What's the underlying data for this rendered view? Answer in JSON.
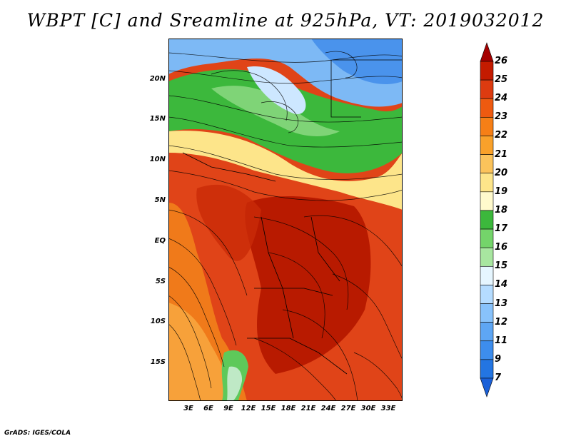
{
  "title": "WBPT [C] and Sreamline at 925hPa, VT: 2019032012",
  "credit": "GrADS: IGES/COLA",
  "y_axis_labels": [
    "20N",
    "15N",
    "10N",
    "5N",
    "EQ",
    "5S",
    "10S",
    "15S"
  ],
  "x_axis_labels": [
    "3E",
    "6E",
    "9E",
    "12E",
    "15E",
    "18E",
    "21E",
    "24E",
    "27E",
    "30E",
    "33E"
  ],
  "colorbar": {
    "levels": [
      "26",
      "25",
      "24",
      "23",
      "22",
      "21",
      "20",
      "19",
      "18",
      "17",
      "16",
      "15",
      "14",
      "13",
      "12",
      "11",
      "9",
      "7"
    ],
    "colors": [
      "#a50000",
      "#c41b00",
      "#dd3b10",
      "#ee5a10",
      "#f67f16",
      "#f9a12a",
      "#fbc35b",
      "#fde58a",
      "#fffacd",
      "#3cb83c",
      "#74d46a",
      "#a8e6a0",
      "#e6f6ff",
      "#b5dcff",
      "#88c2fb",
      "#5ea6f4",
      "#3d8ded",
      "#2375e2",
      "#1a60d8"
    ]
  }
}
